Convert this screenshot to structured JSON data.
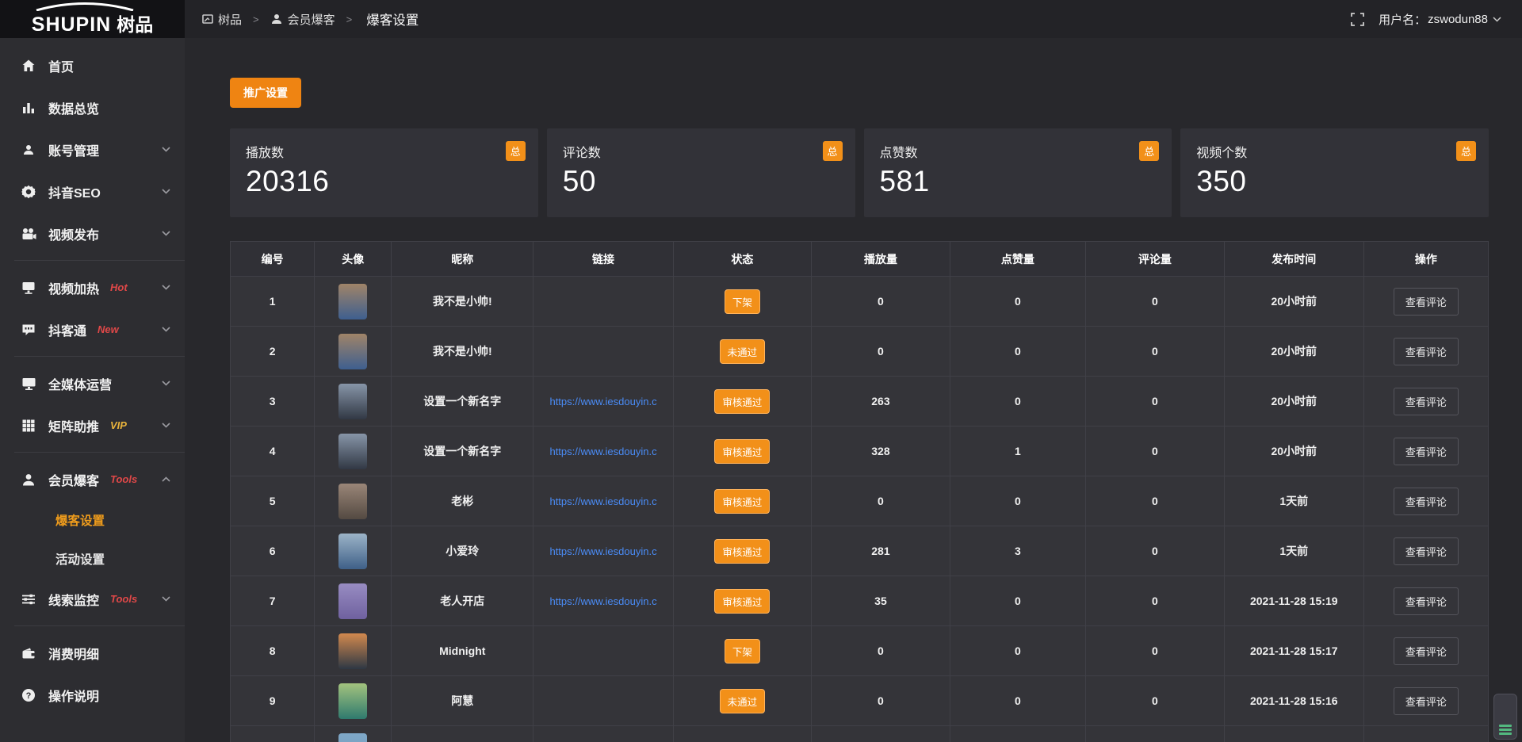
{
  "brand": {
    "logo_en": "SHUPIN",
    "logo_cn": "树品"
  },
  "topbar": {
    "breadcrumb": [
      {
        "label": "树品",
        "icon": "window-icon"
      },
      {
        "label": "会员爆客",
        "icon": "user-icon"
      },
      {
        "label": "爆客设置",
        "icon": ""
      }
    ],
    "separator": ">",
    "username_label": "用户名：",
    "username": "zswodun88"
  },
  "sidebar": {
    "sections": [
      {
        "items": [
          {
            "label": "首页",
            "icon": "home-icon"
          },
          {
            "label": "数据总览",
            "icon": "bar-chart-icon"
          },
          {
            "label": "账号管理",
            "icon": "user-icon",
            "expandable": true
          },
          {
            "label": "抖音SEO",
            "icon": "gear-icon",
            "expandable": true
          },
          {
            "label": "视频发布",
            "icon": "video-icon",
            "expandable": true
          }
        ]
      },
      {
        "items": [
          {
            "label": "视频加热",
            "icon": "screen-icon",
            "badge": "Hot",
            "badge_color": "#e04848",
            "expandable": true
          },
          {
            "label": "抖客通",
            "icon": "chat-icon",
            "badge": "New",
            "badge_color": "#e04848",
            "expandable": true
          }
        ]
      },
      {
        "items": [
          {
            "label": "全媒体运营",
            "icon": "monitor-icon",
            "expandable": true
          },
          {
            "label": "矩阵助推",
            "icon": "grid-icon",
            "badge": "VIP",
            "badge_color": "#e8b33c",
            "expandable": true
          }
        ]
      },
      {
        "items": [
          {
            "label": "会员爆客",
            "icon": "member-icon",
            "badge": "Tools",
            "badge_color": "#e04848",
            "expandable": true,
            "expanded": true,
            "children": [
              {
                "label": "爆客设置",
                "active": true
              },
              {
                "label": "活动设置",
                "active": false
              }
            ]
          },
          {
            "label": "线索监控",
            "icon": "sliders-icon",
            "badge": "Tools",
            "badge_color": "#e04848",
            "expandable": true
          }
        ]
      },
      {
        "items": [
          {
            "label": "消费明细",
            "icon": "wallet-icon"
          },
          {
            "label": "操作说明",
            "icon": "help-icon"
          }
        ]
      }
    ]
  },
  "toolbar": {
    "promo_button": "推广设置"
  },
  "stats": {
    "badge": "总",
    "cards": [
      {
        "label": "播放数",
        "value": "20316"
      },
      {
        "label": "评论数",
        "value": "50"
      },
      {
        "label": "点赞数",
        "value": "581"
      },
      {
        "label": "视频个数",
        "value": "350"
      }
    ]
  },
  "table": {
    "headers": [
      "编号",
      "头像",
      "昵称",
      "链接",
      "状态",
      "播放量",
      "点赞量",
      "评论量",
      "发布时间",
      "操作"
    ],
    "action_label": "查看评论",
    "rows": [
      {
        "no": "1",
        "avatar": {
          "name": "boy-photo",
          "colors": [
            "#a08468",
            "#3e5f8f"
          ]
        },
        "nickname": "我不是小帅!",
        "link": "",
        "status": "下架",
        "plays": "0",
        "likes": "0",
        "comments": "0",
        "time": "20小时前"
      },
      {
        "no": "2",
        "avatar": {
          "name": "boy-photo",
          "colors": [
            "#a08468",
            "#3e5f8f"
          ]
        },
        "nickname": "我不是小帅!",
        "link": "",
        "status": "未通过",
        "plays": "0",
        "likes": "0",
        "comments": "0",
        "time": "20小时前"
      },
      {
        "no": "3",
        "avatar": {
          "name": "dusk-sky-photo",
          "colors": [
            "#8795a8",
            "#313844"
          ]
        },
        "nickname": "设置一个新名字",
        "link": "https://www.iesdouyin.c",
        "status": "审核通过",
        "plays": "263",
        "likes": "0",
        "comments": "0",
        "time": "20小时前"
      },
      {
        "no": "4",
        "avatar": {
          "name": "dusk-sky-photo",
          "colors": [
            "#8795a8",
            "#313844"
          ]
        },
        "nickname": "设置一个新名字",
        "link": "https://www.iesdouyin.c",
        "status": "审核通过",
        "plays": "328",
        "likes": "1",
        "comments": "0",
        "time": "20小时前"
      },
      {
        "no": "5",
        "avatar": {
          "name": "man-face-photo",
          "colors": [
            "#9a8678",
            "#544a42"
          ]
        },
        "nickname": "老彬",
        "link": "https://www.iesdouyin.c",
        "status": "审核通过",
        "plays": "0",
        "likes": "0",
        "comments": "0",
        "time": "1天前"
      },
      {
        "no": "6",
        "avatar": {
          "name": "person-boat-photo",
          "colors": [
            "#9cb4c8",
            "#3f6088"
          ]
        },
        "nickname": "小爱玲",
        "link": "https://www.iesdouyin.c",
        "status": "审核通过",
        "plays": "281",
        "likes": "3",
        "comments": "0",
        "time": "1天前"
      },
      {
        "no": "7",
        "avatar": {
          "name": "cartoon-purple-avatar",
          "colors": [
            "#988cc2",
            "#6f619f"
          ]
        },
        "nickname": "老人开店",
        "link": "https://www.iesdouyin.c",
        "status": "审核通过",
        "plays": "35",
        "likes": "0",
        "comments": "0",
        "time": "2021-11-28 15:19"
      },
      {
        "no": "8",
        "avatar": {
          "name": "sunset-photo",
          "colors": [
            "#d2894e",
            "#2e3844"
          ]
        },
        "nickname": "Midnight",
        "link": "",
        "status": "下架",
        "plays": "0",
        "likes": "0",
        "comments": "0",
        "time": "2021-11-28 15:17"
      },
      {
        "no": "9",
        "avatar": {
          "name": "green-abstract-photo",
          "colors": [
            "#a3c37e",
            "#2f7a6e"
          ]
        },
        "nickname": "阿慧",
        "link": "",
        "status": "未通过",
        "plays": "0",
        "likes": "0",
        "comments": "0",
        "time": "2021-11-28 15:16"
      },
      {
        "no": "",
        "avatar": {
          "name": "blue-photo",
          "colors": [
            "#7fa8c8",
            "#6f98b8"
          ]
        },
        "nickname": "",
        "link": "",
        "status": "",
        "plays": "",
        "likes": "",
        "comments": "",
        "time": ""
      }
    ]
  }
}
